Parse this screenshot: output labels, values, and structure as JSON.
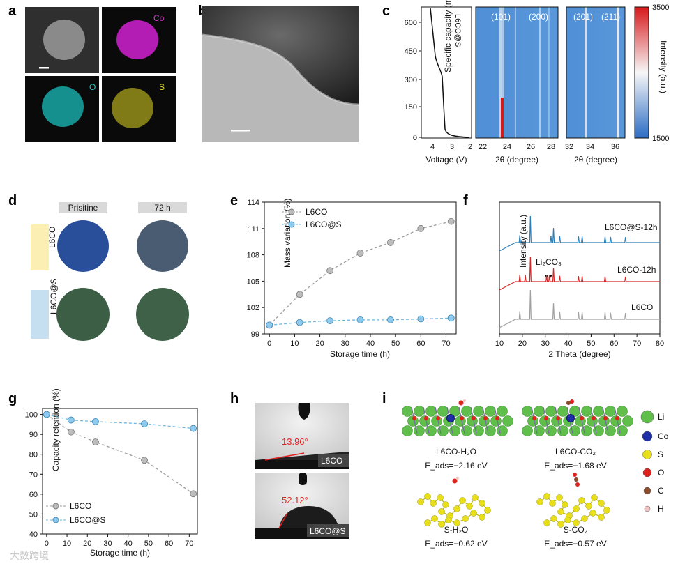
{
  "panels": {
    "a": "a",
    "b": "b",
    "c": "c",
    "d": "d",
    "e": "e",
    "f": "f",
    "g": "g",
    "h": "h",
    "i": "i"
  },
  "panel_a": {
    "elements": [
      "Co",
      "O",
      "S"
    ]
  },
  "panel_c": {
    "sample_label": "L6CO@S",
    "ylabel": "Specific capacity (mAh g⁻¹)",
    "yticks": [
      "0",
      "150",
      "300",
      "450",
      "600"
    ],
    "voltage_xlabel": "Voltage (V)",
    "voltage_xticks": [
      "4",
      "3",
      "2"
    ],
    "two_theta_xlabel": "2θ (degree)",
    "map1_xticks": [
      "22",
      "24",
      "26",
      "28"
    ],
    "map1_peaks": [
      "(101)",
      "(200)"
    ],
    "map2_xticks": [
      "32",
      "34",
      "36"
    ],
    "map2_peaks": [
      "(201)",
      "(211)"
    ],
    "colorbar_label": "Intensity (a.u.)",
    "colorbar_max": "3500",
    "colorbar_min": "1500",
    "colors": {
      "high": "#d7191c",
      "mid": "#f7f7f7",
      "low": "#2b6cc4"
    }
  },
  "panel_d": {
    "col1": "Prisitine",
    "col2": "72 h",
    "row1": "L6CO",
    "row2": "L6CO@S",
    "colors": {
      "l6co_fresh": "#2a4f9a",
      "l6co_aged": "#4a5c72",
      "l6cos": "#3b5e45"
    }
  },
  "panel_h": {
    "angle1": "13.96°",
    "sample1": "L6CO",
    "angle2": "52.12°",
    "sample2": "L6CO@S"
  },
  "panel_i": {
    "legend": [
      "Li",
      "Co",
      "S",
      "O",
      "C",
      "H"
    ],
    "legend_colors": [
      "#5fbf4a",
      "#1f2fa8",
      "#e8df1a",
      "#e0221f",
      "#8b4a2b",
      "#f2c4c4"
    ],
    "names": [
      "L6CO-H₂O",
      "L6CO-CO₂",
      "S-H₂O",
      "S-CO₂"
    ],
    "energies": [
      "E_ads=−2.16 eV",
      "E_ads=−1.68 eV",
      "E_ads=−0.62 eV",
      "E_ads=−0.57 eV"
    ]
  },
  "watermark": "大数跨境",
  "chart_data": [
    {
      "id": "e",
      "type": "line",
      "xlabel": "Storage time (h)",
      "ylabel": "Mass variation (%)",
      "x": [
        0,
        12,
        24,
        36,
        48,
        60,
        72
      ],
      "xticks": [
        0,
        10,
        20,
        30,
        40,
        50,
        60,
        70
      ],
      "yticks": [
        99,
        102,
        105,
        108,
        111,
        114
      ],
      "xlim": [
        -2,
        74
      ],
      "ylim": [
        99,
        114
      ],
      "legend_position": "top-left",
      "series": [
        {
          "name": "L6CO",
          "color": "#9e9e9e",
          "values": [
            100.0,
            103.5,
            106.2,
            108.2,
            109.4,
            111.0,
            111.8
          ]
        },
        {
          "name": "L6CO@S",
          "color": "#6fb7e0",
          "values": [
            100.0,
            100.3,
            100.5,
            100.6,
            100.6,
            100.7,
            100.8
          ]
        }
      ]
    },
    {
      "id": "f",
      "type": "line",
      "xlabel": "2 Theta (degree)",
      "ylabel": "Intensity (a.u.)",
      "xticks": [
        10,
        20,
        30,
        40,
        50,
        60,
        70,
        80
      ],
      "xlim": [
        10,
        80
      ],
      "annotation": "Li₂CO₃",
      "series": [
        {
          "name": "L6CO@S-12h",
          "color": "#2a7fb8",
          "peaks": [
            18.9,
            23.5,
            32.5,
            33.6,
            36.3,
            44.5,
            46.1,
            56.1,
            58.5,
            65.0
          ]
        },
        {
          "name": "L6CO-12h",
          "color": "#d62728",
          "peaks": [
            18.9,
            21.3,
            23.5,
            30.6,
            31.8,
            33.6,
            36.3,
            44.5,
            46.1,
            56.1,
            65.0
          ]
        },
        {
          "name": "L6CO",
          "color": "#a0a0a0",
          "peaks": [
            18.9,
            23.5,
            33.6,
            36.3,
            44.5,
            46.1,
            56.1,
            58.5,
            65.0
          ]
        }
      ]
    },
    {
      "id": "g",
      "type": "line",
      "xlabel": "Storage time (h)",
      "ylabel": "Capacity retention (%)",
      "x": [
        0,
        12,
        24,
        48,
        72
      ],
      "xticks": [
        0,
        10,
        20,
        30,
        40,
        50,
        60,
        70
      ],
      "yticks": [
        40,
        50,
        60,
        70,
        80,
        90,
        100
      ],
      "xlim": [
        -2,
        74
      ],
      "ylim": [
        40,
        103
      ],
      "legend_position": "bottom-left",
      "series": [
        {
          "name": "L6CO",
          "color": "#9e9e9e",
          "values": [
            100,
            91.2,
            86.2,
            77.0,
            60.2
          ]
        },
        {
          "name": "L6CO@S",
          "color": "#6fb7e0",
          "values": [
            100,
            97.2,
            96.4,
            95.3,
            93.0
          ]
        }
      ]
    }
  ]
}
